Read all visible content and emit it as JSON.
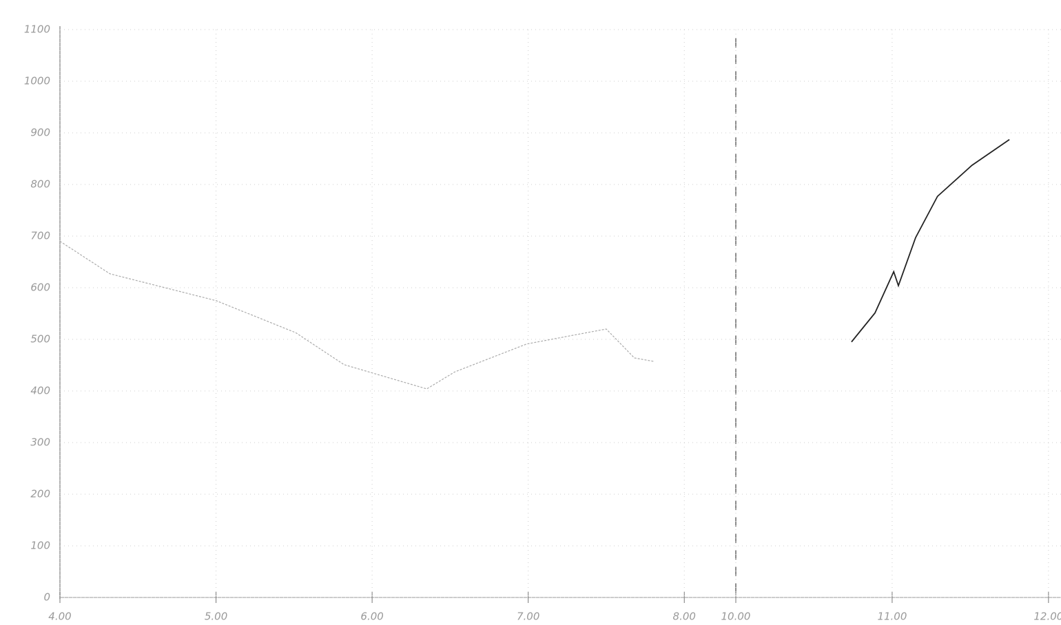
{
  "chart_data": [
    {
      "type": "line",
      "grid": true,
      "xlim": [
        4,
        8.33
      ],
      "ylim": [
        0,
        1100
      ],
      "xticks": [
        {
          "value": 4,
          "label": "4.00"
        },
        {
          "value": 5,
          "label": "5.00"
        },
        {
          "value": 6,
          "label": "6.00"
        },
        {
          "value": 7,
          "label": "7.00"
        },
        {
          "value": 8,
          "label": "8.00"
        }
      ],
      "yticks": [
        0,
        100,
        200,
        300,
        400,
        500,
        600,
        700,
        800,
        900,
        1000,
        1100
      ],
      "series": [
        {
          "color": "#aaaaaa",
          "x": [
            4.0,
            4.32,
            5.0,
            5.51,
            5.82,
            6.35,
            6.53,
            6.99,
            7.5,
            7.68,
            7.81
          ],
          "values": [
            690,
            627,
            575,
            513,
            451,
            404,
            437,
            491,
            520,
            464,
            457
          ]
        }
      ]
    },
    {
      "type": "line",
      "grid": true,
      "xlim": [
        10,
        12.08
      ],
      "ylim": [
        0,
        1100
      ],
      "xticks": [
        {
          "value": 10,
          "label": "10.00"
        },
        {
          "value": 11,
          "label": "11.00"
        },
        {
          "value": 12,
          "label": "12.00"
        }
      ],
      "series": [
        {
          "color": "#222222",
          "x": [
            10.74,
            10.89,
            11.01,
            11.04,
            11.15,
            11.29,
            11.51,
            11.75
          ],
          "values": [
            495,
            551,
            631,
            604,
            697,
            777,
            837,
            887
          ]
        }
      ]
    }
  ]
}
